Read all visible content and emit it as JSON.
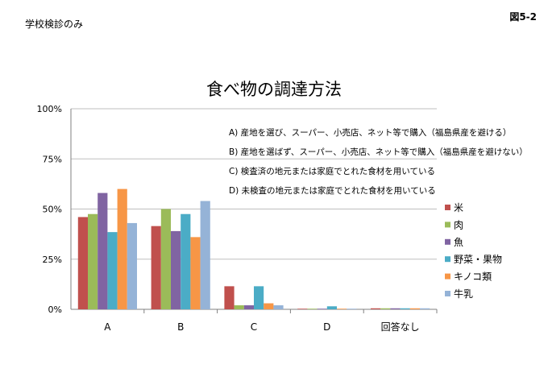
{
  "page": {
    "corner_left": "学校検診のみ",
    "corner_right": "図5-2"
  },
  "chart_data": {
    "type": "bar",
    "title": "食べ物の調達方法",
    "categories": [
      "A",
      "B",
      "C",
      "D",
      "回答なし"
    ],
    "ylim": [
      0,
      100
    ],
    "yticks": [
      0,
      25,
      50,
      75,
      100
    ],
    "ytick_labels": [
      "0%",
      "25%",
      "50%",
      "75%",
      "100%"
    ],
    "grid": true,
    "legend_position": "right",
    "series": [
      {
        "name": "米",
        "color": "#C0504D",
        "values": [
          46,
          41.5,
          11.5,
          0.3,
          0.5
        ]
      },
      {
        "name": "肉",
        "color": "#9BBB59",
        "values": [
          47.5,
          50,
          2,
          0.3,
          0.5
        ]
      },
      {
        "name": "魚",
        "color": "#8064A2",
        "values": [
          58,
          39,
          2,
          0.3,
          0.5
        ]
      },
      {
        "name": "野菜・果物",
        "color": "#4BACC6",
        "values": [
          38.5,
          47.5,
          11.5,
          1.5,
          0.5
        ]
      },
      {
        "name": "キノコ類",
        "color": "#F79646",
        "values": [
          60,
          36,
          3,
          0.3,
          0.5
        ]
      },
      {
        "name": "牛乳",
        "color": "#95B3D7",
        "values": [
          43,
          54,
          2,
          0.3,
          0.5
        ]
      }
    ],
    "annotations": [
      "A)  産地を選び、スーパー、小売店、ネット等で購入（福島県産を避ける）",
      "B)  産地を選ばず、スーパー、小売店、ネット等で購入（福島県産を避けない）",
      "C)  検査済の地元または家庭でとれた食材を用いている",
      "D)  未検査の地元または家庭でとれた食材を用いている"
    ]
  }
}
